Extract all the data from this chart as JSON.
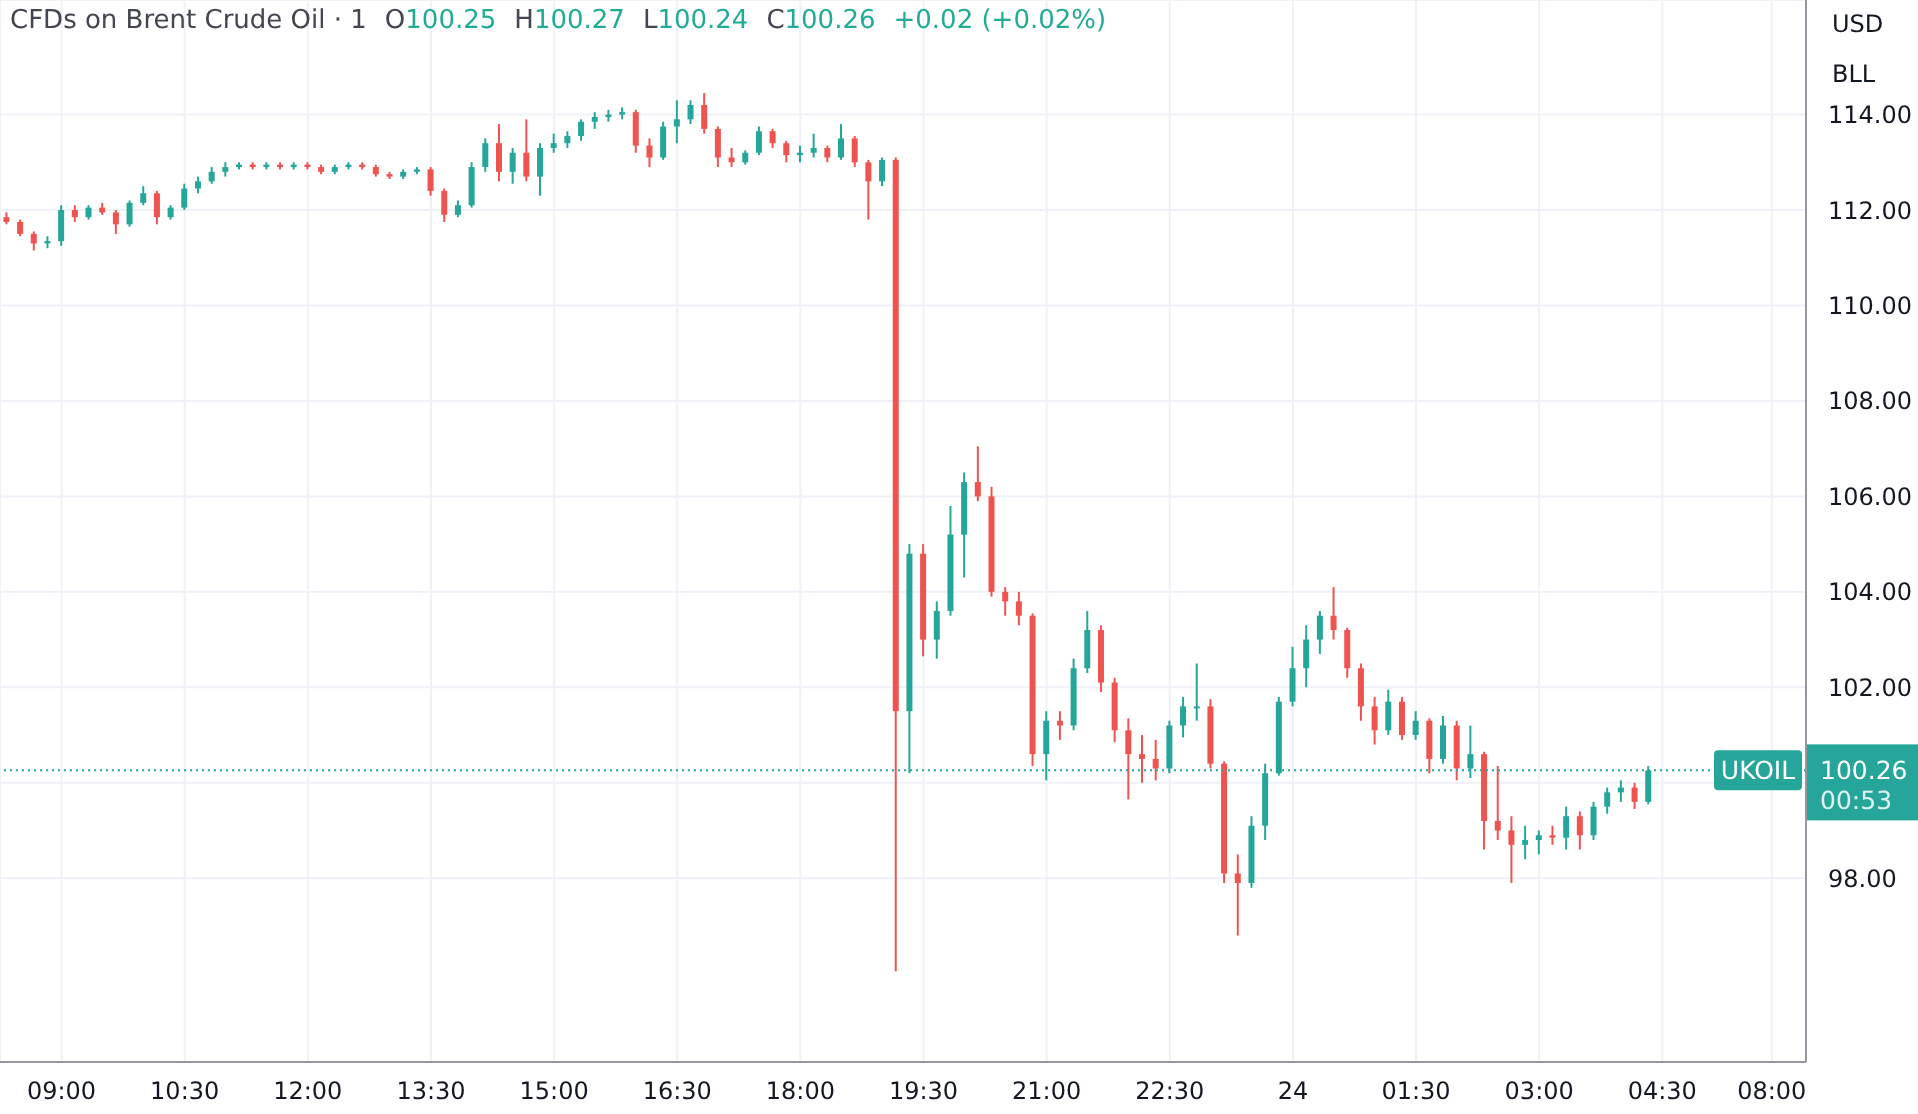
{
  "chart_data": {
    "type": "candlestick",
    "title": "CFDs on Brent Crude Oil · 1",
    "annotations": [
      "O100.25",
      "H100.27",
      "L100.24",
      "C100.26",
      "+0.02 (+0.02%)",
      "USD",
      "BLL",
      "100.26",
      "00:53"
    ],
    "categories": [
      null,
      null,
      null,
      null,
      "09:00",
      null,
      null,
      null,
      null,
      null,
      null,
      null,
      null,
      "10:30",
      null,
      null,
      null,
      null,
      null,
      null,
      null,
      null,
      "12:00",
      null,
      null,
      null,
      null,
      null,
      null,
      null,
      null,
      "13:30",
      null,
      null,
      null,
      null,
      null,
      null,
      null,
      null,
      "15:00",
      null,
      null,
      null,
      null,
      null,
      null,
      null,
      null,
      "16:30",
      null,
      null,
      null,
      null,
      null,
      null,
      null,
      null,
      "18:00",
      null,
      null,
      null,
      null,
      null,
      null,
      null,
      null,
      "19:30",
      null,
      null,
      null,
      null,
      null,
      null,
      null,
      null,
      "21:00",
      null,
      null,
      null,
      null,
      null,
      null,
      null,
      null,
      "22:30",
      null,
      null,
      null,
      null,
      null,
      null,
      null,
      null,
      "24",
      null,
      null,
      null,
      null,
      null,
      null,
      null,
      null,
      "01:30",
      null,
      null,
      null,
      null,
      null,
      null,
      null,
      null,
      "03:00",
      null,
      null,
      null,
      null,
      null,
      null,
      null,
      null,
      "04:30",
      null,
      null,
      null,
      null,
      null,
      null,
      null,
      "08:00",
      null,
      null
    ],
    "ohlc": [
      [
        111.85,
        111.95,
        111.7,
        111.75
      ],
      [
        111.75,
        111.8,
        111.45,
        111.5
      ],
      [
        111.5,
        111.55,
        111.15,
        111.3
      ],
      [
        111.3,
        111.45,
        111.2,
        111.35
      ],
      [
        111.35,
        112.1,
        111.25,
        112.0
      ],
      [
        112.0,
        112.1,
        111.75,
        111.85
      ],
      [
        111.85,
        112.1,
        111.8,
        112.05
      ],
      [
        112.05,
        112.15,
        111.9,
        111.95
      ],
      [
        111.95,
        112.0,
        111.5,
        111.7
      ],
      [
        111.7,
        112.2,
        111.65,
        112.15
      ],
      [
        112.15,
        112.5,
        112.1,
        112.35
      ],
      [
        112.35,
        112.4,
        111.7,
        111.85
      ],
      [
        111.85,
        112.1,
        111.8,
        112.05
      ],
      [
        112.05,
        112.55,
        112.0,
        112.45
      ],
      [
        112.45,
        112.7,
        112.35,
        112.6
      ],
      [
        112.6,
        112.9,
        112.55,
        112.8
      ],
      [
        112.8,
        113.0,
        112.7,
        112.9
      ],
      [
        112.9,
        113.0,
        112.85,
        112.95
      ],
      [
        112.95,
        113.0,
        112.85,
        112.9
      ],
      [
        112.9,
        113.0,
        112.85,
        112.95
      ],
      [
        112.95,
        113.0,
        112.85,
        112.9
      ],
      [
        112.9,
        113.0,
        112.85,
        112.95
      ],
      [
        112.95,
        113.0,
        112.85,
        112.9
      ],
      [
        112.9,
        112.95,
        112.75,
        112.8
      ],
      [
        112.8,
        112.95,
        112.75,
        112.9
      ],
      [
        112.9,
        113.0,
        112.85,
        112.95
      ],
      [
        112.95,
        113.0,
        112.85,
        112.9
      ],
      [
        112.9,
        112.95,
        112.7,
        112.75
      ],
      [
        112.75,
        112.8,
        112.65,
        112.7
      ],
      [
        112.7,
        112.85,
        112.65,
        112.8
      ],
      [
        112.8,
        112.9,
        112.75,
        112.85
      ],
      [
        112.85,
        112.9,
        112.3,
        112.4
      ],
      [
        112.4,
        112.45,
        111.75,
        111.9
      ],
      [
        111.9,
        112.2,
        111.85,
        112.1
      ],
      [
        112.1,
        113.0,
        112.05,
        112.9
      ],
      [
        112.9,
        113.5,
        112.8,
        113.4
      ],
      [
        113.4,
        113.8,
        112.6,
        112.8
      ],
      [
        112.8,
        113.3,
        112.55,
        113.2
      ],
      [
        113.2,
        113.9,
        112.6,
        112.7
      ],
      [
        112.7,
        113.4,
        112.3,
        113.3
      ],
      [
        113.3,
        113.6,
        113.2,
        113.4
      ],
      [
        113.4,
        113.65,
        113.3,
        113.55
      ],
      [
        113.55,
        113.9,
        113.45,
        113.85
      ],
      [
        113.85,
        114.05,
        113.7,
        113.95
      ],
      [
        113.95,
        114.1,
        113.85,
        114.0
      ],
      [
        114.0,
        114.15,
        113.9,
        114.05
      ],
      [
        114.05,
        114.1,
        113.2,
        113.35
      ],
      [
        113.35,
        113.5,
        112.9,
        113.1
      ],
      [
        113.1,
        113.85,
        113.05,
        113.75
      ],
      [
        113.75,
        114.3,
        113.4,
        113.9
      ],
      [
        113.9,
        114.3,
        113.8,
        114.2
      ],
      [
        114.2,
        114.45,
        113.6,
        113.7
      ],
      [
        113.7,
        113.75,
        112.9,
        113.1
      ],
      [
        113.1,
        113.3,
        112.9,
        113.0
      ],
      [
        113.0,
        113.25,
        112.95,
        113.2
      ],
      [
        113.2,
        113.75,
        113.15,
        113.65
      ],
      [
        113.65,
        113.7,
        113.3,
        113.4
      ],
      [
        113.4,
        113.45,
        113.0,
        113.15
      ],
      [
        113.15,
        113.35,
        113.0,
        113.2
      ],
      [
        113.2,
        113.6,
        113.1,
        113.3
      ],
      [
        113.3,
        113.35,
        113.0,
        113.1
      ],
      [
        113.1,
        113.8,
        113.05,
        113.5
      ],
      [
        113.5,
        113.55,
        112.9,
        113.0
      ],
      [
        113.0,
        113.05,
        111.8,
        112.6
      ],
      [
        112.6,
        113.1,
        112.5,
        113.05
      ],
      [
        113.05,
        113.1,
        96.05,
        101.5
      ],
      [
        101.5,
        105.0,
        100.2,
        104.8
      ],
      [
        104.8,
        105.0,
        102.65,
        103.0
      ],
      [
        103.0,
        103.8,
        102.6,
        103.6
      ],
      [
        103.6,
        105.8,
        103.5,
        105.2
      ],
      [
        105.2,
        106.5,
        104.3,
        106.3
      ],
      [
        106.3,
        107.05,
        105.9,
        106.0
      ],
      [
        106.0,
        106.2,
        103.9,
        104.0
      ],
      [
        104.0,
        104.1,
        103.5,
        103.8
      ],
      [
        103.8,
        104.0,
        103.3,
        103.5
      ],
      [
        103.5,
        103.55,
        100.35,
        100.6
      ],
      [
        100.6,
        101.5,
        100.05,
        101.3
      ],
      [
        101.3,
        101.5,
        100.9,
        101.2
      ],
      [
        101.2,
        102.6,
        101.1,
        102.4
      ],
      [
        102.4,
        103.6,
        102.3,
        103.2
      ],
      [
        103.2,
        103.3,
        101.9,
        102.1
      ],
      [
        102.1,
        102.2,
        100.85,
        101.1
      ],
      [
        101.1,
        101.35,
        99.65,
        100.6
      ],
      [
        100.6,
        101.0,
        100.0,
        100.5
      ],
      [
        100.5,
        100.9,
        100.05,
        100.3
      ],
      [
        100.3,
        101.3,
        100.2,
        101.2
      ],
      [
        101.2,
        101.8,
        100.95,
        101.6
      ],
      [
        101.6,
        102.5,
        101.3,
        101.6
      ],
      [
        101.6,
        101.75,
        100.3,
        100.4
      ],
      [
        100.4,
        100.45,
        97.9,
        98.1
      ],
      [
        98.1,
        98.5,
        96.8,
        97.9
      ],
      [
        97.9,
        99.3,
        97.8,
        99.1
      ],
      [
        99.1,
        100.4,
        98.8,
        100.2
      ],
      [
        100.2,
        101.8,
        100.15,
        101.7
      ],
      [
        101.7,
        102.85,
        101.6,
        102.4
      ],
      [
        102.4,
        103.3,
        102.0,
        103.0
      ],
      [
        103.0,
        103.6,
        102.7,
        103.5
      ],
      [
        103.5,
        104.1,
        103.0,
        103.2
      ],
      [
        103.2,
        103.25,
        102.2,
        102.4
      ],
      [
        102.4,
        102.5,
        101.3,
        101.6
      ],
      [
        101.6,
        101.8,
        100.8,
        101.1
      ],
      [
        101.1,
        101.95,
        101.0,
        101.7
      ],
      [
        101.7,
        101.8,
        100.9,
        101.0
      ],
      [
        101.0,
        101.5,
        100.9,
        101.3
      ],
      [
        101.3,
        101.35,
        100.2,
        100.5
      ],
      [
        100.5,
        101.4,
        100.4,
        101.2
      ],
      [
        101.2,
        101.3,
        100.05,
        100.3
      ],
      [
        100.3,
        101.2,
        100.1,
        100.6
      ],
      [
        100.6,
        100.65,
        98.6,
        99.2
      ],
      [
        99.2,
        100.35,
        98.8,
        99.0
      ],
      [
        99.0,
        99.3,
        97.9,
        98.7
      ],
      [
        98.7,
        99.1,
        98.4,
        98.8
      ],
      [
        98.8,
        99.0,
        98.5,
        98.9
      ],
      [
        98.9,
        99.1,
        98.7,
        98.85
      ],
      [
        98.85,
        99.5,
        98.6,
        99.3
      ],
      [
        99.3,
        99.4,
        98.6,
        98.9
      ],
      [
        98.9,
        99.6,
        98.8,
        99.5
      ],
      [
        99.5,
        99.9,
        99.35,
        99.8
      ],
      [
        99.8,
        100.05,
        99.6,
        99.9
      ],
      [
        99.9,
        100.0,
        99.45,
        99.6
      ],
      [
        99.6,
        100.35,
        99.55,
        100.26
      ],
      null,
      null,
      null,
      null,
      null,
      null,
      null,
      null,
      null,
      null,
      null
    ],
    "ylim": [
      94.15,
      116.4
    ],
    "yticks": [
      {
        "value": 98,
        "label": "98.00"
      },
      {
        "value": 100,
        "label": null
      },
      {
        "value": 102,
        "label": "102.00"
      },
      {
        "value": 104,
        "label": "104.00"
      },
      {
        "value": 106,
        "label": "106.00"
      },
      {
        "value": 108,
        "label": "108.00"
      },
      {
        "value": 110,
        "label": "110.00"
      },
      {
        "value": 112,
        "label": "112.00"
      },
      {
        "value": 114,
        "label": "114.00"
      }
    ],
    "grid": true,
    "ref_lines": [
      {
        "axis": "y",
        "value": 100.26,
        "label": "UKOIL",
        "color": "#26a69a",
        "line_style": "dotted"
      }
    ]
  }
}
